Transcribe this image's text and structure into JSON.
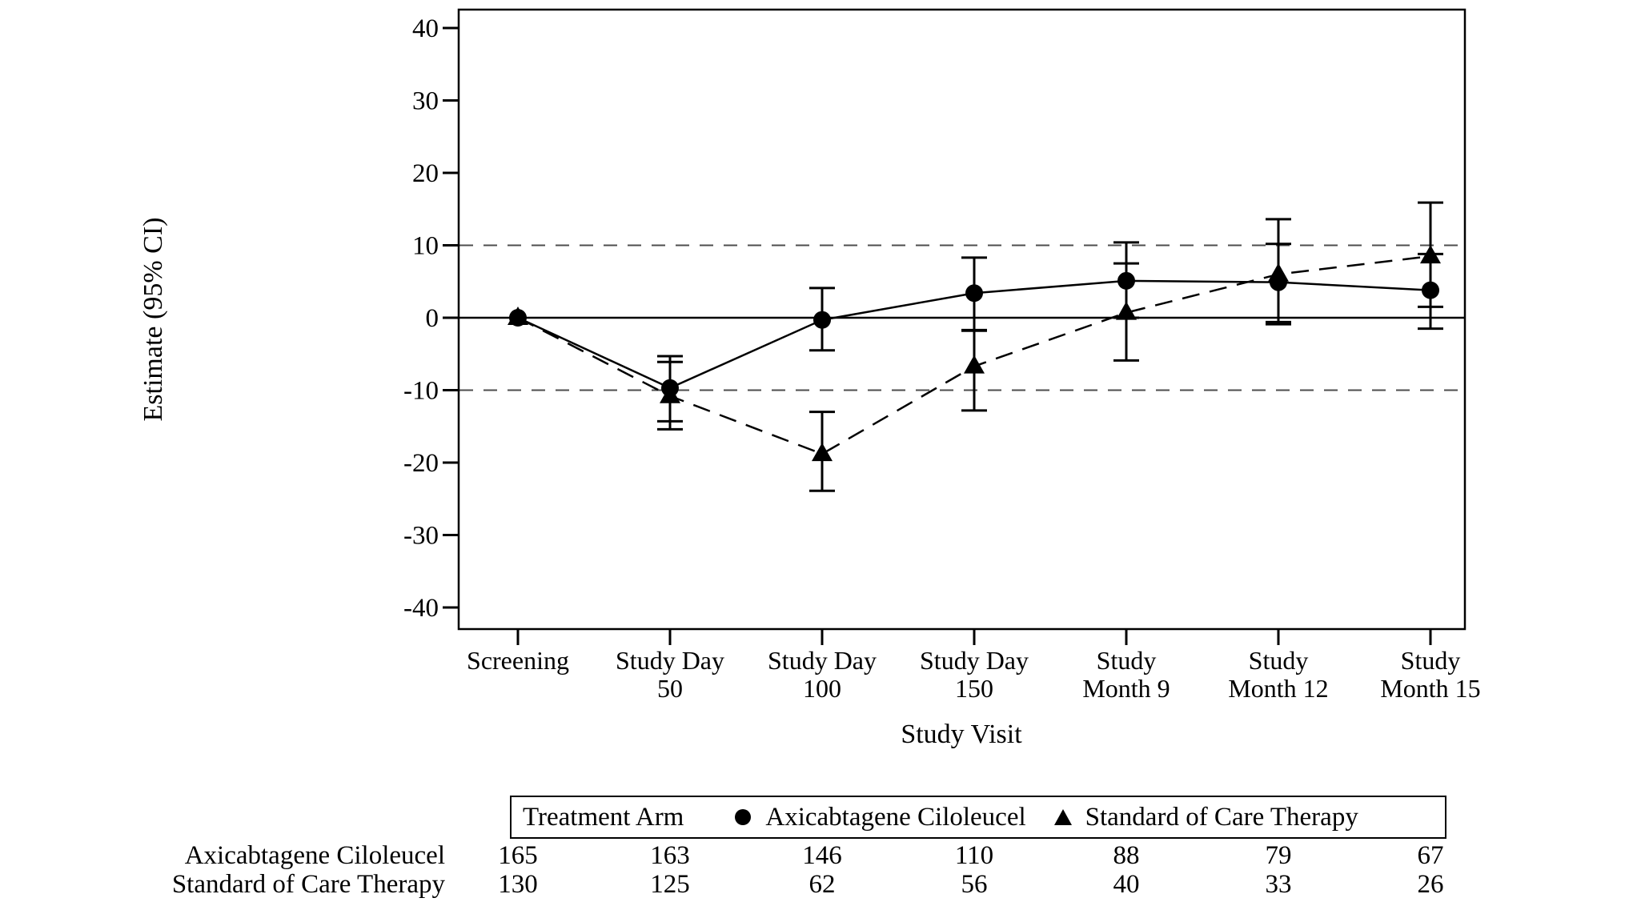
{
  "chart_data": {
    "type": "line",
    "title": "",
    "ylabel": "Estimate (95% CI)",
    "xlabel": "Study Visit",
    "ylim": [
      -40,
      40
    ],
    "yticks": [
      40,
      30,
      20,
      10,
      0,
      -10,
      -20,
      -30,
      -40
    ],
    "grid": false,
    "categories": [
      [
        "Screening"
      ],
      [
        "Study Day",
        "50"
      ],
      [
        "Study Day",
        "100"
      ],
      [
        "Study Day",
        "150"
      ],
      [
        "Study",
        "Month 9"
      ],
      [
        "Study",
        "Month 12"
      ],
      [
        "Study",
        "Month 15"
      ]
    ],
    "reference_lines": [
      {
        "y": 10,
        "style": "dashed"
      },
      {
        "y": 0,
        "style": "solid"
      },
      {
        "y": -10,
        "style": "dashed"
      }
    ],
    "legend": {
      "title": "Treatment Arm",
      "position": "bottom"
    },
    "series": [
      {
        "name": "Axicabtagene Ciloleucel",
        "marker": "circle",
        "line": "solid",
        "estimates": [
          0,
          -9.7,
          -0.3,
          3.4,
          5.1,
          4.9,
          3.8
        ],
        "ci_lower": [
          null,
          -14.3,
          -4.5,
          -1.8,
          0.0,
          -0.9,
          -1.5
        ],
        "ci_upper": [
          null,
          -5.3,
          4.1,
          8.3,
          10.4,
          10.2,
          8.8
        ]
      },
      {
        "name": "Standard of Care Therapy",
        "marker": "triangle",
        "line": "dashed",
        "estimates": [
          0,
          -10.8,
          -18.8,
          -6.7,
          0.7,
          6.0,
          8.5
        ],
        "ci_lower": [
          null,
          -15.4,
          -23.9,
          -12.8,
          -5.9,
          -0.6,
          1.5
        ],
        "ci_upper": [
          null,
          -6.1,
          -13.0,
          -1.7,
          7.5,
          13.6,
          15.9
        ]
      }
    ],
    "at_risk_table": {
      "rows": [
        {
          "label": "Axicabtagene Ciloleucel",
          "values": [
            165,
            163,
            146,
            110,
            88,
            79,
            67
          ]
        },
        {
          "label": "Standard of Care Therapy",
          "values": [
            130,
            125,
            62,
            56,
            40,
            33,
            26
          ]
        }
      ]
    },
    "colors": {
      "foreground": "#000000",
      "reference_line": "#4d4d4d",
      "background": "#ffffff"
    }
  }
}
